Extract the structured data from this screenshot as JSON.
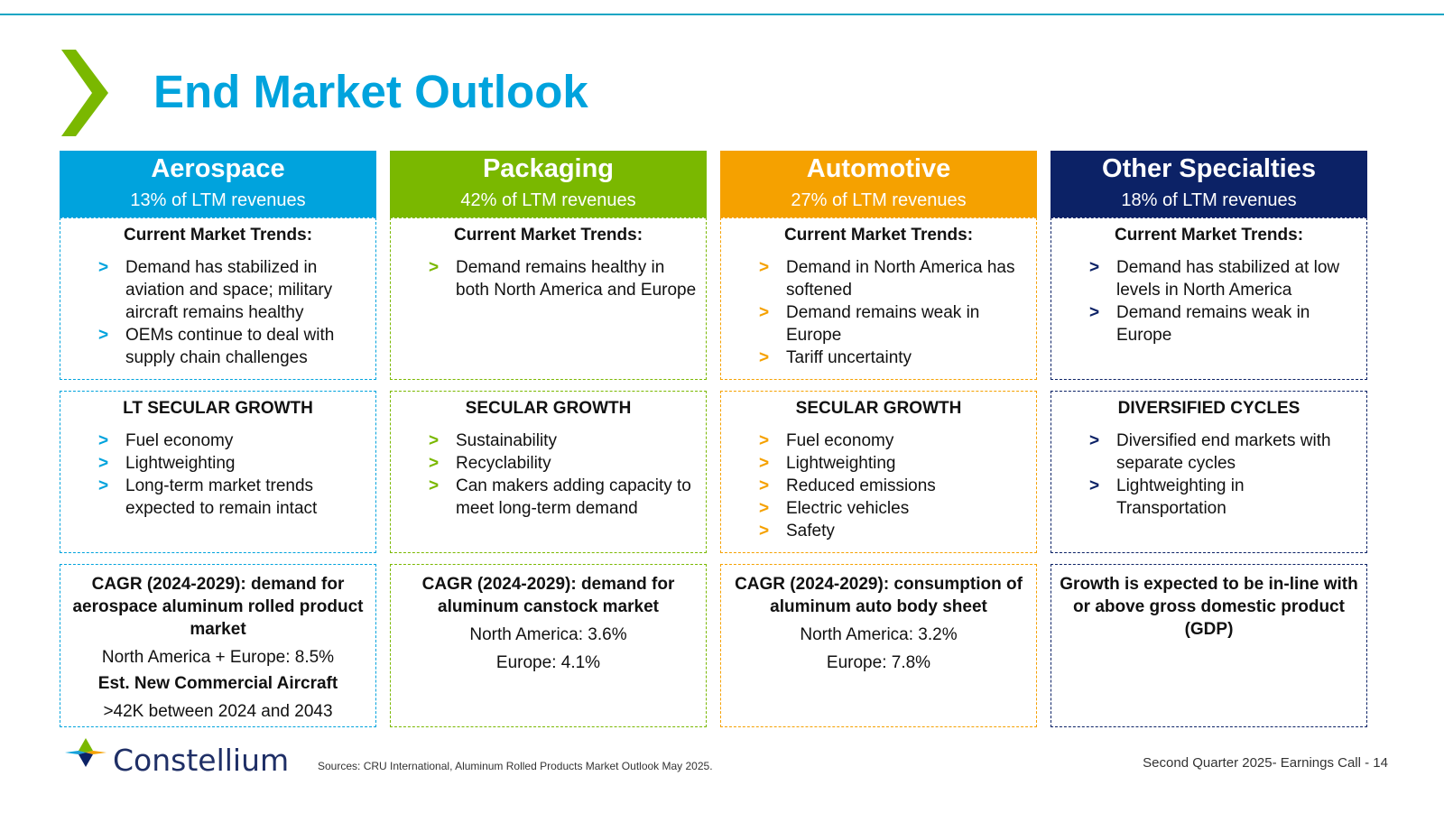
{
  "title": "End Market Outlook",
  "columns": [
    {
      "name": "Aerospace",
      "share": "13% of LTM revenues",
      "color": "#00a3dd",
      "trends_title": "Current Market Trends:",
      "trends": [
        "Demand has stabilized in aviation and space; military aircraft remains healthy",
        "OEMs continue to deal with supply chain challenges"
      ],
      "growth_title": "LT SECULAR GROWTH",
      "growth": [
        "Fuel economy",
        "Lightweighting",
        "Long-term market trends expected to remain intact"
      ],
      "outlook_title": "CAGR (2024-2029): demand for aerospace aluminum rolled product market",
      "outlook_lines": [
        "North America + Europe: 8.5%"
      ],
      "extra_title": "Est. New Commercial Aircraft",
      "extra_line": ">42K between 2024 and 2043"
    },
    {
      "name": "Packaging",
      "share": "42% of LTM revenues",
      "color": "#7ab800",
      "trends_title": "Current Market Trends:",
      "trends": [
        "Demand remains healthy in both North America and Europe"
      ],
      "growth_title": "SECULAR GROWTH",
      "growth": [
        "Sustainability",
        "Recyclability",
        "Can makers adding capacity to meet long-term demand"
      ],
      "outlook_title": "CAGR (2024-2029): demand for aluminum canstock market",
      "outlook_lines": [
        "North America: 3.6%",
        "Europe: 4.1%"
      ]
    },
    {
      "name": "Automotive",
      "share": "27% of LTM revenues",
      "color": "#f5a100",
      "trends_title": "Current Market Trends:",
      "trends": [
        "Demand in North America has softened",
        "Demand remains weak in Europe",
        "Tariff uncertainty"
      ],
      "growth_title": "SECULAR GROWTH",
      "growth": [
        "Fuel economy",
        "Lightweighting",
        "Reduced emissions",
        "Electric vehicles",
        "Safety"
      ],
      "outlook_title": "CAGR (2024-2029): consumption of aluminum auto body sheet",
      "outlook_lines": [
        "North America: 3.2%",
        "Europe: 7.8%"
      ]
    },
    {
      "name": "Other Specialties",
      "share": "18% of LTM revenues",
      "color": "#0c2266",
      "trends_title": "Current Market Trends:",
      "trends": [
        "Demand has stabilized at low levels in North America",
        "Demand remains weak in Europe"
      ],
      "growth_title": "DIVERSIFIED CYCLES",
      "growth": [
        "Diversified end markets with separate cycles",
        "Lightweighting in Transportation"
      ],
      "outlook_title": "Growth is expected to be in-line with or above gross domestic product (GDP)",
      "outlook_lines": []
    }
  ],
  "bullet_glyph": ">",
  "footer": {
    "logo_text": "Constellium",
    "sources": "Sources: CRU International, Aluminum Rolled Products Market Outlook May 2025.",
    "right": "Second Quarter 2025-  Earnings Call - 14"
  }
}
